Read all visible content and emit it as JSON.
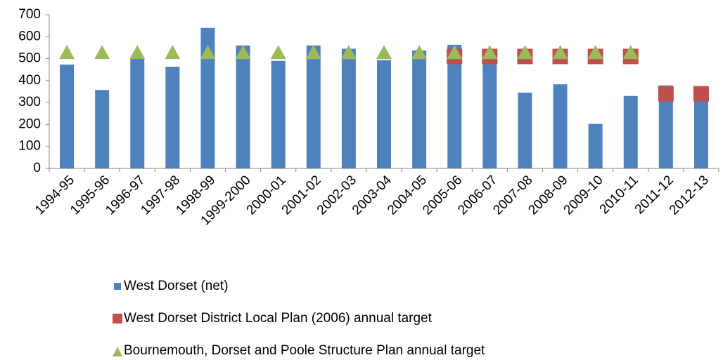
{
  "chart_data": {
    "type": "bar",
    "categories": [
      "1994-95",
      "1995-96",
      "1996-97",
      "1997-98",
      "1998-99",
      "1999-2000",
      "2000-01",
      "2001-02",
      "2002-03",
      "2003-04",
      "2004-05",
      "2005-06",
      "2006-07",
      "2007-08",
      "2008-09",
      "2009-10",
      "2010-11",
      "2011-12",
      "2012-13"
    ],
    "series": [
      {
        "name": "West Dorset (net)",
        "color": "#4f81bd",
        "marker": "bar",
        "values": [
          473,
          357,
          500,
          463,
          640,
          560,
          490,
          560,
          545,
          493,
          537,
          563,
          500,
          345,
          383,
          203,
          330,
          378,
          365
        ]
      },
      {
        "name": "West Dorset District Local Plan (2006) annual target",
        "color": "#c0504d",
        "marker": "square",
        "values": [
          null,
          null,
          null,
          null,
          null,
          null,
          null,
          null,
          null,
          null,
          null,
          510,
          510,
          510,
          510,
          510,
          510,
          340,
          340
        ]
      },
      {
        "name": "Bournemouth, Dorset and Poole Structure Plan annual target",
        "color": "#9bbb59",
        "marker": "triangle",
        "values": [
          530,
          530,
          530,
          530,
          530,
          530,
          530,
          530,
          530,
          530,
          530,
          530,
          530,
          530,
          530,
          530,
          530,
          null,
          null
        ]
      }
    ],
    "ylim": [
      0,
      700
    ],
    "yticks": [
      0,
      100,
      200,
      300,
      400,
      500,
      600,
      700
    ],
    "grid": false
  }
}
